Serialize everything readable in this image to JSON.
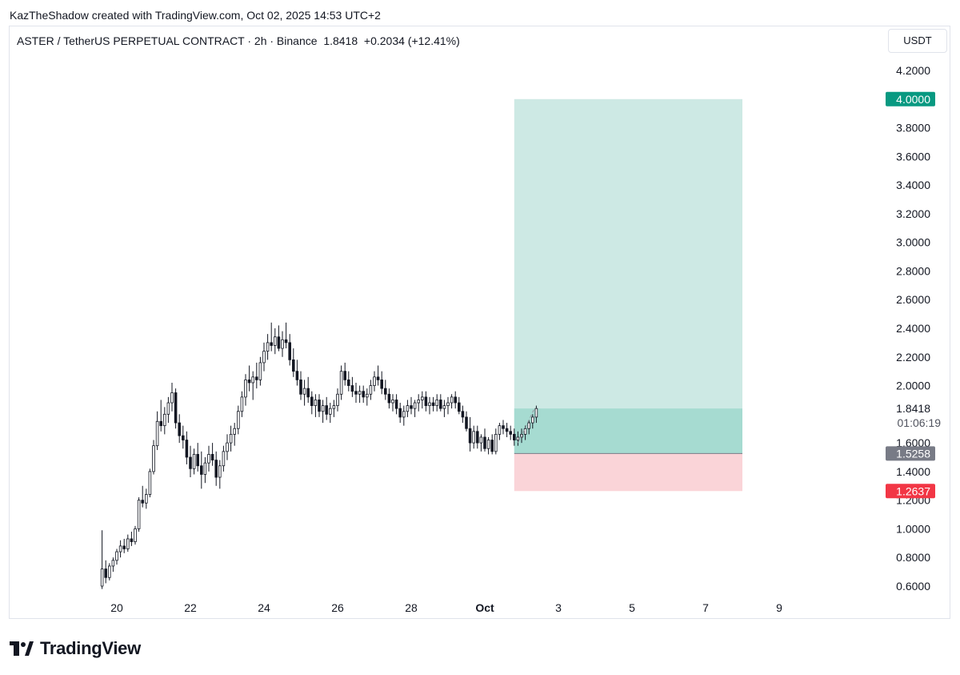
{
  "attribution": "KazTheShadow created with TradingView.com, Oct 02, 2025 14:53 UTC+2",
  "header": {
    "symbol_line": "ASTER / TetherUS PERPETUAL CONTRACT · 2h · Binance",
    "last_price": "1.8418",
    "change": "+0.2034 (+12.41%)"
  },
  "currency_button": "USDT",
  "price_axis": {
    "ticks": [
      "4.2000",
      "3.8000",
      "3.6000",
      "3.4000",
      "3.2000",
      "3.0000",
      "2.8000",
      "2.6000",
      "2.4000",
      "2.2000",
      "2.0000",
      "1.6000",
      "1.4000",
      "1.2000",
      "1.0000",
      "0.8000",
      "0.6000"
    ]
  },
  "badges": {
    "target": "4.0000",
    "last": "1.8418",
    "countdown": "01:06:19",
    "entry": "1.5258",
    "stop": "1.2637"
  },
  "time_axis": [
    "20",
    "22",
    "24",
    "26",
    "28",
    "Oct",
    "3",
    "5",
    "7",
    "9"
  ],
  "footer": {
    "brand": "TradingView"
  },
  "colors": {
    "profit_zone": "#cde9e4",
    "profit_zone_active": "#a6dbd1",
    "loss_zone": "#fad4d8",
    "target_badge": "#089981",
    "stop_badge": "#f23645",
    "entry_badge": "#787b86",
    "candle_up": "#ffffff",
    "candle_down": "#131722"
  },
  "chart_data": {
    "type": "candlestick",
    "symbol": "ASTER / TetherUS PERPETUAL CONTRACT",
    "interval": "2h",
    "exchange": "Binance",
    "ylim": [
      0.55,
      4.35
    ],
    "x_day_range": [
      19.5,
      39.5
    ],
    "position": {
      "direction": "long",
      "entry": 1.5258,
      "target": 4.0,
      "stop": 1.2637,
      "start_day": 30.8,
      "end_day": 37.0
    },
    "candles": [
      [
        19.6,
        0.6,
        0.99,
        0.58,
        0.72
      ],
      [
        19.7,
        0.72,
        0.78,
        0.62,
        0.66
      ],
      [
        19.8,
        0.66,
        0.76,
        0.64,
        0.74
      ],
      [
        19.9,
        0.74,
        0.8,
        0.7,
        0.78
      ],
      [
        20.0,
        0.78,
        0.86,
        0.75,
        0.84
      ],
      [
        20.1,
        0.84,
        0.92,
        0.8,
        0.88
      ],
      [
        20.2,
        0.88,
        0.93,
        0.83,
        0.86
      ],
      [
        20.3,
        0.86,
        0.96,
        0.84,
        0.93
      ],
      [
        20.4,
        0.93,
        0.98,
        0.88,
        0.91
      ],
      [
        20.5,
        0.91,
        1.02,
        0.89,
        1.0
      ],
      [
        20.6,
        1.0,
        1.22,
        0.98,
        1.2
      ],
      [
        20.7,
        1.2,
        1.3,
        1.15,
        1.18
      ],
      [
        20.8,
        1.18,
        1.28,
        1.14,
        1.24
      ],
      [
        20.9,
        1.24,
        1.42,
        1.22,
        1.4
      ],
      [
        21.0,
        1.4,
        1.62,
        1.38,
        1.58
      ],
      [
        21.1,
        1.58,
        1.82,
        1.55,
        1.75
      ],
      [
        21.2,
        1.75,
        1.9,
        1.68,
        1.72
      ],
      [
        21.3,
        1.72,
        1.85,
        1.66,
        1.8
      ],
      [
        21.4,
        1.8,
        1.92,
        1.74,
        1.88
      ],
      [
        21.5,
        1.88,
        2.02,
        1.82,
        1.95
      ],
      [
        21.6,
        1.95,
        1.98,
        1.7,
        1.74
      ],
      [
        21.7,
        1.74,
        1.8,
        1.6,
        1.65
      ],
      [
        21.8,
        1.65,
        1.72,
        1.56,
        1.62
      ],
      [
        21.9,
        1.62,
        1.68,
        1.45,
        1.5
      ],
      [
        22.0,
        1.5,
        1.58,
        1.36,
        1.42
      ],
      [
        22.1,
        1.42,
        1.56,
        1.38,
        1.52
      ],
      [
        22.2,
        1.52,
        1.6,
        1.4,
        1.44
      ],
      [
        22.3,
        1.44,
        1.54,
        1.28,
        1.38
      ],
      [
        22.4,
        1.38,
        1.5,
        1.32,
        1.46
      ],
      [
        22.5,
        1.46,
        1.58,
        1.4,
        1.52
      ],
      [
        22.6,
        1.52,
        1.6,
        1.44,
        1.48
      ],
      [
        22.7,
        1.48,
        1.54,
        1.3,
        1.36
      ],
      [
        22.8,
        1.36,
        1.48,
        1.28,
        1.44
      ],
      [
        22.9,
        1.44,
        1.58,
        1.4,
        1.54
      ],
      [
        23.0,
        1.54,
        1.66,
        1.48,
        1.6
      ],
      [
        23.1,
        1.6,
        1.72,
        1.54,
        1.66
      ],
      [
        23.2,
        1.66,
        1.74,
        1.58,
        1.7
      ],
      [
        23.3,
        1.7,
        1.86,
        1.66,
        1.82
      ],
      [
        23.4,
        1.82,
        1.96,
        1.78,
        1.92
      ],
      [
        23.5,
        1.92,
        2.08,
        1.86,
        2.04
      ],
      [
        23.6,
        2.04,
        2.14,
        1.96,
        2.02
      ],
      [
        23.7,
        2.02,
        2.1,
        1.9,
        2.06
      ],
      [
        23.8,
        2.06,
        2.16,
        1.98,
        2.04
      ],
      [
        23.9,
        2.04,
        2.2,
        2.0,
        2.16
      ],
      [
        24.0,
        2.16,
        2.3,
        2.1,
        2.24
      ],
      [
        24.1,
        2.24,
        2.36,
        2.18,
        2.3
      ],
      [
        24.2,
        2.3,
        2.44,
        2.24,
        2.28
      ],
      [
        24.3,
        2.28,
        2.4,
        2.22,
        2.34
      ],
      [
        24.4,
        2.34,
        2.42,
        2.24,
        2.26
      ],
      [
        24.5,
        2.26,
        2.38,
        2.2,
        2.32
      ],
      [
        24.6,
        2.32,
        2.44,
        2.26,
        2.3
      ],
      [
        24.7,
        2.3,
        2.36,
        2.14,
        2.18
      ],
      [
        24.8,
        2.18,
        2.26,
        2.06,
        2.1
      ],
      [
        24.9,
        2.1,
        2.18,
        2.0,
        2.04
      ],
      [
        25.0,
        2.04,
        2.1,
        1.9,
        1.94
      ],
      [
        25.1,
        1.94,
        2.04,
        1.86,
        1.98
      ],
      [
        25.2,
        1.98,
        2.06,
        1.88,
        1.92
      ],
      [
        25.3,
        1.92,
        1.96,
        1.8,
        1.86
      ],
      [
        25.4,
        1.86,
        1.94,
        1.78,
        1.9
      ],
      [
        25.5,
        1.9,
        1.94,
        1.78,
        1.82
      ],
      [
        25.6,
        1.82,
        1.9,
        1.74,
        1.86
      ],
      [
        25.7,
        1.86,
        1.92,
        1.76,
        1.8
      ],
      [
        25.8,
        1.8,
        1.88,
        1.74,
        1.84
      ],
      [
        25.9,
        1.84,
        1.9,
        1.78,
        1.86
      ],
      [
        26.0,
        1.86,
        1.98,
        1.82,
        1.94
      ],
      [
        26.1,
        1.94,
        2.14,
        1.9,
        2.1
      ],
      [
        26.2,
        2.1,
        2.16,
        2.0,
        2.04
      ],
      [
        26.3,
        2.04,
        2.1,
        1.96,
        2.0
      ],
      [
        26.4,
        2.0,
        2.06,
        1.92,
        1.96
      ],
      [
        26.5,
        1.96,
        2.02,
        1.88,
        1.94
      ],
      [
        26.6,
        1.94,
        2.0,
        1.88,
        1.96
      ],
      [
        26.7,
        1.96,
        2.0,
        1.88,
        1.92
      ],
      [
        26.8,
        1.92,
        1.98,
        1.86,
        1.94
      ],
      [
        26.9,
        1.94,
        2.04,
        1.9,
        2.0
      ],
      [
        27.0,
        2.0,
        2.1,
        1.96,
        2.06
      ],
      [
        27.1,
        2.06,
        2.14,
        2.0,
        2.04
      ],
      [
        27.2,
        2.04,
        2.1,
        1.94,
        1.98
      ],
      [
        27.3,
        1.98,
        2.04,
        1.9,
        1.94
      ],
      [
        27.4,
        1.94,
        1.98,
        1.84,
        1.88
      ],
      [
        27.5,
        1.88,
        1.94,
        1.82,
        1.9
      ],
      [
        27.6,
        1.9,
        1.94,
        1.8,
        1.84
      ],
      [
        27.7,
        1.84,
        1.88,
        1.74,
        1.78
      ],
      [
        27.8,
        1.78,
        1.86,
        1.72,
        1.82
      ],
      [
        27.9,
        1.82,
        1.9,
        1.78,
        1.86
      ],
      [
        28.0,
        1.86,
        1.92,
        1.8,
        1.84
      ],
      [
        28.1,
        1.84,
        1.9,
        1.78,
        1.88
      ],
      [
        28.2,
        1.88,
        1.94,
        1.82,
        1.9
      ],
      [
        28.3,
        1.9,
        1.96,
        1.84,
        1.92
      ],
      [
        28.4,
        1.92,
        1.96,
        1.82,
        1.86
      ],
      [
        28.5,
        1.86,
        1.92,
        1.8,
        1.88
      ],
      [
        28.6,
        1.88,
        1.92,
        1.82,
        1.86
      ],
      [
        28.7,
        1.86,
        1.94,
        1.82,
        1.9
      ],
      [
        28.8,
        1.9,
        1.94,
        1.82,
        1.84
      ],
      [
        28.9,
        1.84,
        1.9,
        1.78,
        1.86
      ],
      [
        29.0,
        1.86,
        1.92,
        1.8,
        1.88
      ],
      [
        29.1,
        1.88,
        1.94,
        1.84,
        1.92
      ],
      [
        29.2,
        1.92,
        1.96,
        1.84,
        1.88
      ],
      [
        29.3,
        1.88,
        1.92,
        1.8,
        1.82
      ],
      [
        29.4,
        1.82,
        1.86,
        1.74,
        1.78
      ],
      [
        29.5,
        1.78,
        1.82,
        1.68,
        1.7
      ],
      [
        29.6,
        1.7,
        1.78,
        1.54,
        1.6
      ],
      [
        29.7,
        1.6,
        1.72,
        1.56,
        1.68
      ],
      [
        29.8,
        1.68,
        1.72,
        1.56,
        1.6
      ],
      [
        29.9,
        1.6,
        1.66,
        1.54,
        1.64
      ],
      [
        30.0,
        1.64,
        1.7,
        1.54,
        1.56
      ],
      [
        30.1,
        1.56,
        1.64,
        1.52,
        1.62
      ],
      [
        30.2,
        1.62,
        1.66,
        1.52,
        1.54
      ],
      [
        30.3,
        1.54,
        1.7,
        1.52,
        1.66
      ],
      [
        30.4,
        1.66,
        1.74,
        1.62,
        1.72
      ],
      [
        30.5,
        1.72,
        1.76,
        1.66,
        1.7
      ],
      [
        30.6,
        1.7,
        1.74,
        1.64,
        1.68
      ],
      [
        30.7,
        1.68,
        1.72,
        1.62,
        1.66
      ],
      [
        30.8,
        1.66,
        1.7,
        1.58,
        1.62
      ],
      [
        30.9,
        1.62,
        1.68,
        1.58,
        1.64
      ],
      [
        31.0,
        1.64,
        1.7,
        1.6,
        1.66
      ],
      [
        31.1,
        1.66,
        1.72,
        1.62,
        1.7
      ],
      [
        31.2,
        1.7,
        1.76,
        1.66,
        1.74
      ],
      [
        31.3,
        1.74,
        1.8,
        1.7,
        1.78
      ],
      [
        31.4,
        1.78,
        1.86,
        1.74,
        1.84
      ]
    ]
  }
}
